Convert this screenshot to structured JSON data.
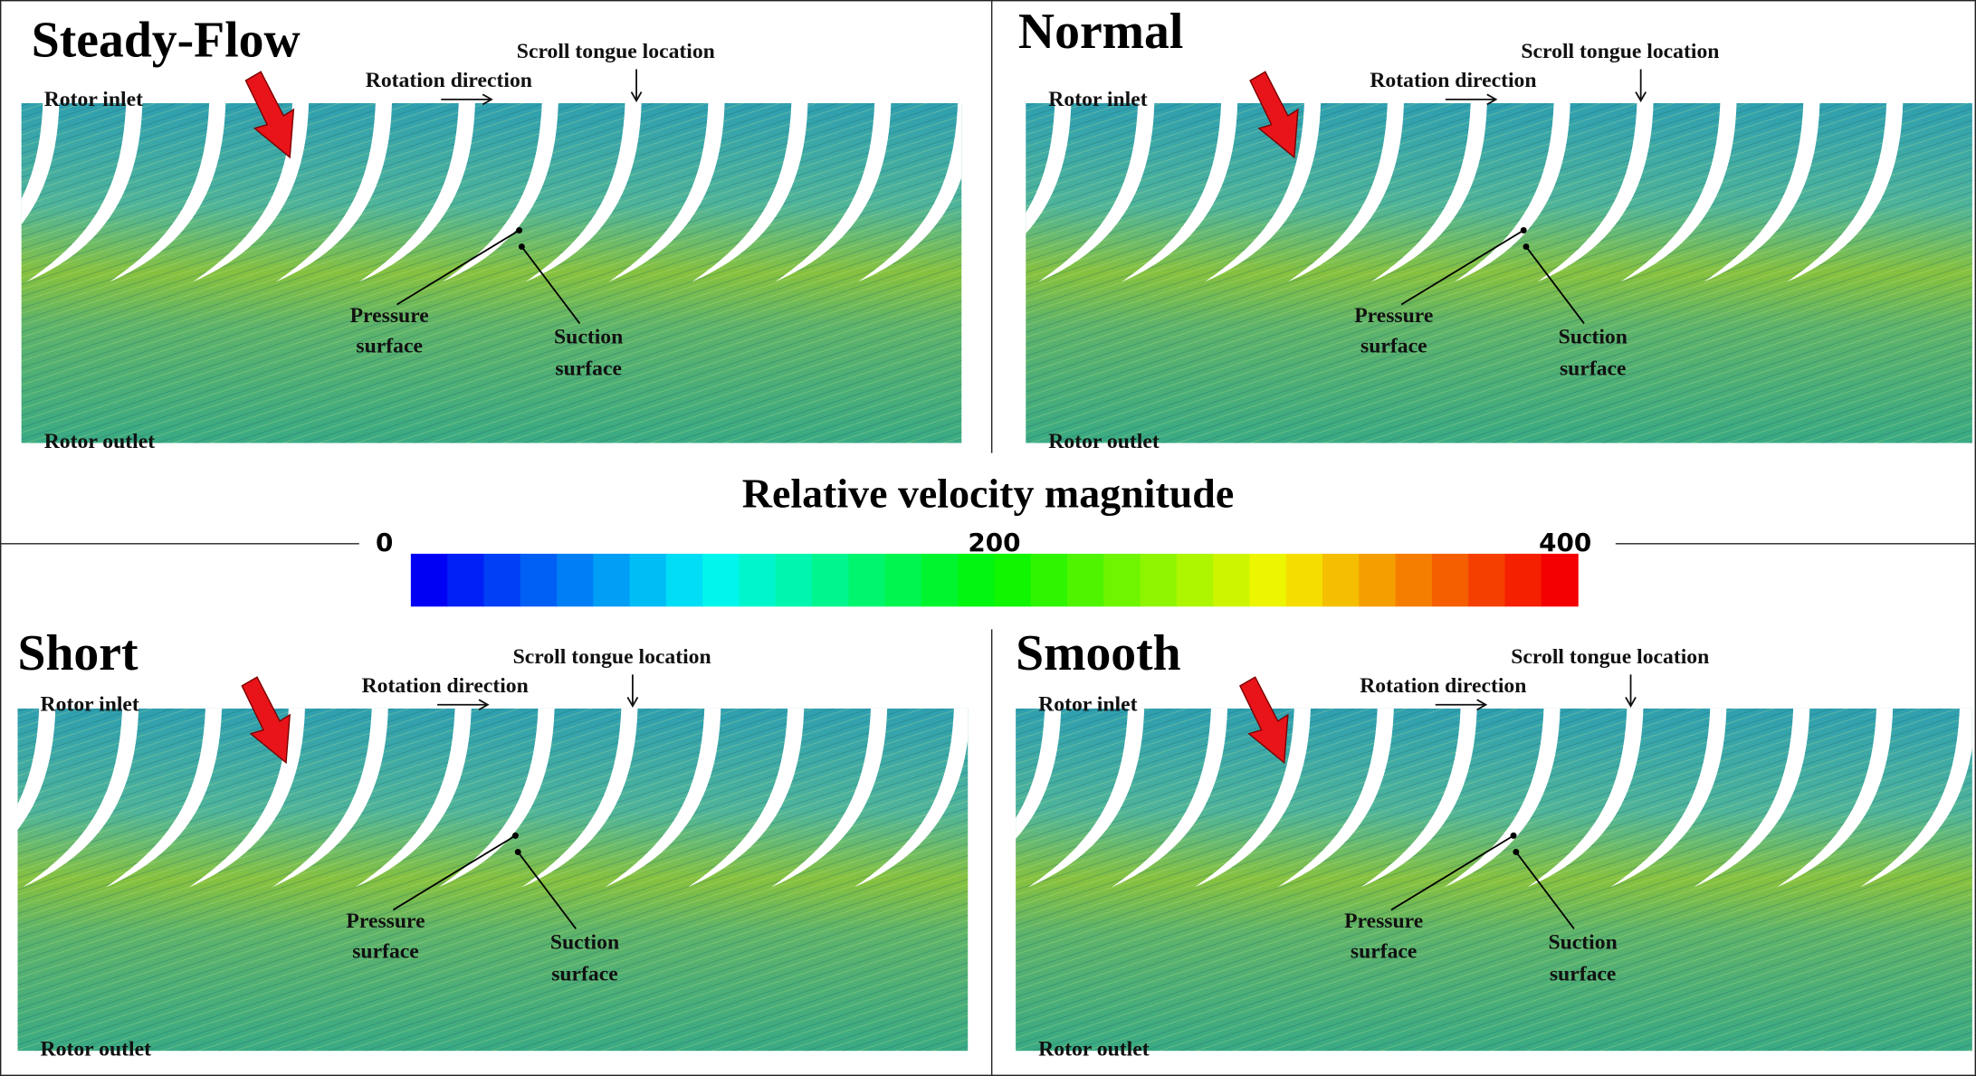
{
  "colorbar": {
    "title": "Relative velocity magnitude",
    "ticks": [
      0,
      200,
      400
    ]
  },
  "panels": [
    {
      "title": "Steady-Flow",
      "rotor_inlet": "Rotor inlet",
      "rotor_outlet": "Rotor outlet",
      "rotation": "Rotation direction",
      "scroll": "Scroll tongue location",
      "pressure": [
        "Pressure",
        "surface"
      ],
      "suction": [
        "Suction",
        "surface"
      ]
    },
    {
      "title": "Normal",
      "rotor_inlet": "Rotor inlet",
      "rotor_outlet": "Rotor outlet",
      "rotation": "Rotation direction",
      "scroll": "Scroll tongue location",
      "pressure": [
        "Pressure",
        "surface"
      ],
      "suction": [
        "Suction",
        "surface"
      ]
    },
    {
      "title": "Short",
      "rotor_inlet": "Rotor inlet",
      "rotor_outlet": "Rotor outlet",
      "rotation": "Rotation direction",
      "scroll": "Scroll tongue location",
      "pressure": [
        "Pressure",
        "surface"
      ],
      "suction": [
        "Suction",
        "surface"
      ]
    },
    {
      "title": "Smooth",
      "rotor_inlet": "Rotor inlet",
      "rotor_outlet": "Rotor outlet",
      "rotation": "Rotation direction",
      "scroll": "Scroll tongue location",
      "pressure": [
        "Pressure",
        "surface"
      ],
      "suction": [
        "Suction",
        "surface"
      ]
    }
  ]
}
